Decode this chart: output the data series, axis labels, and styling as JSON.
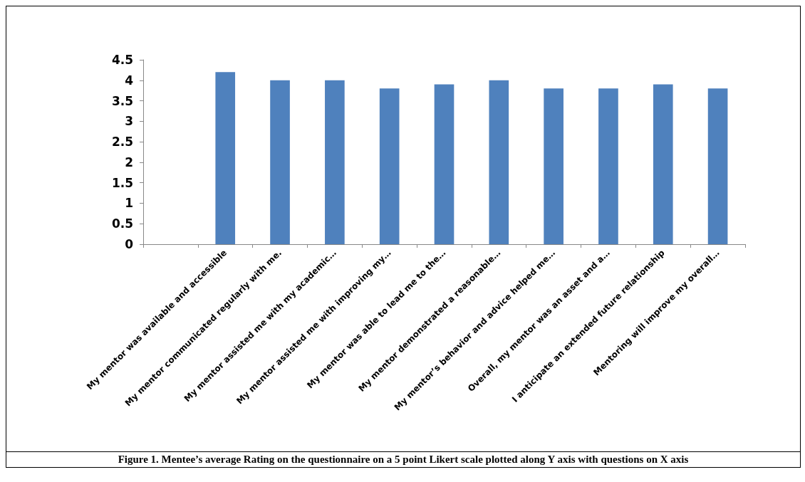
{
  "chart_data": {
    "type": "bar",
    "categories": [
      null,
      "My mentor was available and accessible",
      "My mentor communicated regularly with me.",
      "My mentor assisted me with my academic…",
      "My mentor assisted me with improving my…",
      "My mentor was able to lead me to the…",
      "My mentor demonstrated a reasonable…",
      "My mentor’s behavior and advice helped me…",
      "Overall, my mentor was an asset and a…",
      "I anticipate an extended future relationship",
      "Mentoring will improve my overall…"
    ],
    "values": [
      null,
      4.2,
      4.0,
      4.0,
      3.8,
      3.9,
      4.0,
      3.8,
      3.8,
      3.9,
      3.8
    ],
    "color": "#4f81bd",
    "ylim": [
      0,
      4.5
    ],
    "yticks": [
      0,
      0.5,
      1,
      1.5,
      2,
      2.5,
      3,
      3.5,
      4,
      4.5
    ],
    "grid": false,
    "annotations": [
      "Figure 1. Mentee’s average Rating on the questionnaire on a 5 point Likert scale plotted along Y axis with questions on X axis"
    ]
  }
}
